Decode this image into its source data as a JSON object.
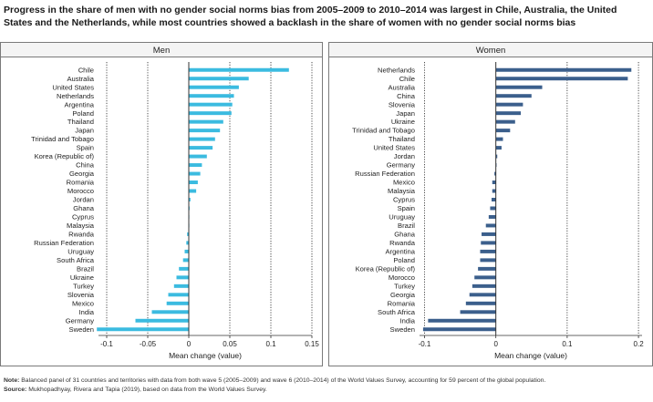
{
  "title": "Progress in the share of men with no gender social norms bias from 2005–2009 to 2010–2014 was largest in Chile, Australia, the United States and the Netherlands, while most countries showed a backlash in the share of women with no gender social norms bias",
  "note_label": "Note:",
  "note_text": "Balanced panel of 31 countries and territories with data from both wave 5 (2005–2009) and wave 6 (2010–2014) of the World Values Survey, accounting for 59 percent of the global population.",
  "source_label": "Source:",
  "source_text": "Mukhopadhyay, Rivera and Tapia (2019), based on data from the World Values Survey.",
  "colors": {
    "men": "#3bbbe0",
    "women": "#3b5f8c",
    "axis": "#333333",
    "grid": "#222222"
  },
  "chart_data": [
    {
      "type": "bar",
      "orientation": "horizontal",
      "title": "Men",
      "xlabel": "Mean change (value)",
      "xlim": [
        -0.11,
        0.15
      ],
      "xticks": [
        -0.1,
        -0.05,
        0,
        0.05,
        0.1,
        0.15
      ],
      "xtick_labels": [
        "-0.1",
        "-0.05",
        "0",
        "0.05",
        "0.1",
        "0.15"
      ],
      "reference_lines": [
        -0.1,
        -0.05,
        0.05,
        0.1,
        0.15
      ],
      "categories": [
        "Chile",
        "Australia",
        "United States",
        "Netherlands",
        "Argentina",
        "Poland",
        "Thailand",
        "Japan",
        "Trinidad and Tobago",
        "Spain",
        "Korea (Republic of)",
        "China",
        "Georgia",
        "Romania",
        "Morocco",
        "Jordan",
        "Ghana",
        "Cyprus",
        "Malaysia",
        "Rwanda",
        "Russian Federation",
        "Uruguay",
        "South Africa",
        "Brazil",
        "Ukraine",
        "Turkey",
        "Slovenia",
        "Mexico",
        "India",
        "Germany",
        "Sweden"
      ],
      "values": [
        0.122,
        0.073,
        0.061,
        0.055,
        0.053,
        0.052,
        0.042,
        0.038,
        0.032,
        0.029,
        0.022,
        0.016,
        0.014,
        0.011,
        0.009,
        0.002,
        0.001,
        0.0005,
        0.0005,
        -0.002,
        -0.003,
        -0.005,
        -0.007,
        -0.012,
        -0.015,
        -0.018,
        -0.025,
        -0.027,
        -0.045,
        -0.065,
        -0.112
      ]
    },
    {
      "type": "bar",
      "orientation": "horizontal",
      "title": "Women",
      "xlabel": "Mean change (value)",
      "xlim": [
        -0.107,
        0.205
      ],
      "xticks": [
        -0.1,
        0,
        0.1,
        0.2
      ],
      "xtick_labels": [
        "-0.1",
        "0",
        "0.1",
        "0.2"
      ],
      "reference_lines": [
        -0.1,
        0.1,
        0.2
      ],
      "categories": [
        "Netherlands",
        "Chile",
        "Australia",
        "China",
        "Slovenia",
        "Japan",
        "Ukraine",
        "Trinidad and Tobago",
        "Thailand",
        "United States",
        "Jordan",
        "Germany",
        "Russian Federation",
        "Mexico",
        "Malaysia",
        "Cyprus",
        "Spain",
        "Uruguay",
        "Brazil",
        "Ghana",
        "Rwanda",
        "Argentina",
        "Poland",
        "Korea (Republic of)",
        "Morocco",
        "Turkey",
        "Georgia",
        "Romania",
        "South Africa",
        "India",
        "Sweden"
      ],
      "values": [
        0.19,
        0.185,
        0.065,
        0.05,
        0.038,
        0.035,
        0.027,
        0.02,
        0.01,
        0.008,
        0.002,
        0.001,
        -0.002,
        -0.005,
        -0.005,
        -0.006,
        -0.008,
        -0.01,
        -0.014,
        -0.02,
        -0.021,
        -0.022,
        -0.022,
        -0.025,
        -0.03,
        -0.033,
        -0.037,
        -0.042,
        -0.05,
        -0.095,
        -0.102
      ]
    }
  ]
}
